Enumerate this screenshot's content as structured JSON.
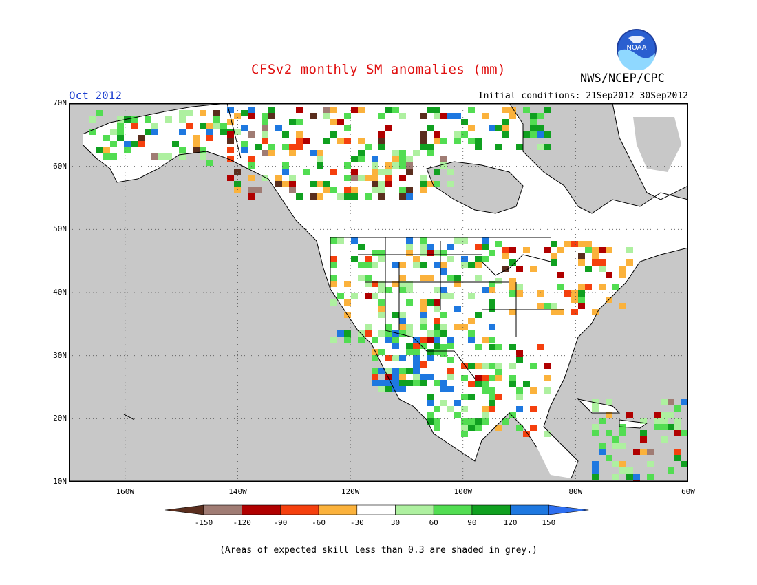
{
  "header": {
    "title": "CFSv2 monthly SM anomalies (mm)",
    "agency": "NWS/NCEP/CPC",
    "valid_month": "Oct 2012",
    "initial_conditions": "Initial conditions: 21Sep2012–30Sep2012",
    "logo_text": "NOAA"
  },
  "map": {
    "lat_labels": [
      "70N",
      "60N",
      "50N",
      "40N",
      "30N",
      "20N",
      "10N"
    ],
    "lat_values": [
      70,
      60,
      50,
      40,
      30,
      20,
      10
    ],
    "lon_labels": [
      "160W",
      "140W",
      "120W",
      "100W",
      "80W",
      "60W"
    ],
    "lon_values": [
      -160,
      -140,
      -120,
      -100,
      -80,
      -60
    ],
    "lon_range": [
      -170,
      -60
    ],
    "lat_range": [
      10,
      70
    ],
    "grid": "dotted"
  },
  "legend": {
    "tick_labels": [
      "-150",
      "-120",
      "-90",
      "-60",
      "-30",
      "30",
      "60",
      "90",
      "120",
      "150"
    ],
    "bins": [
      {
        "range": "< -150",
        "color": "#5a2e1e"
      },
      {
        "range": "-150 to -120",
        "color": "#a07c74"
      },
      {
        "range": "-120 to -90",
        "color": "#b00000"
      },
      {
        "range": "-90 to -60",
        "color": "#f5400e"
      },
      {
        "range": "-60 to -30",
        "color": "#fbb23c"
      },
      {
        "range": "-30 to 30",
        "color": "#ffffff"
      },
      {
        "range": "30 to 60",
        "color": "#aef0a0"
      },
      {
        "range": "60 to 90",
        "color": "#52dd52"
      },
      {
        "range": "90 to 120",
        "color": "#10a020"
      },
      {
        "range": "120 to 150",
        "color": "#1e78e0"
      },
      {
        "range": "> 150",
        "color": "#2e6ff0"
      }
    ]
  },
  "colors": {
    "title": "#e01010",
    "valid_month": "#1c3fd0",
    "land_low_skill": "#c8c8c8",
    "ocean": "#c8c8c8"
  },
  "footnote": "(Areas of expected skill less than 0.3 are shaded in grey.)"
}
